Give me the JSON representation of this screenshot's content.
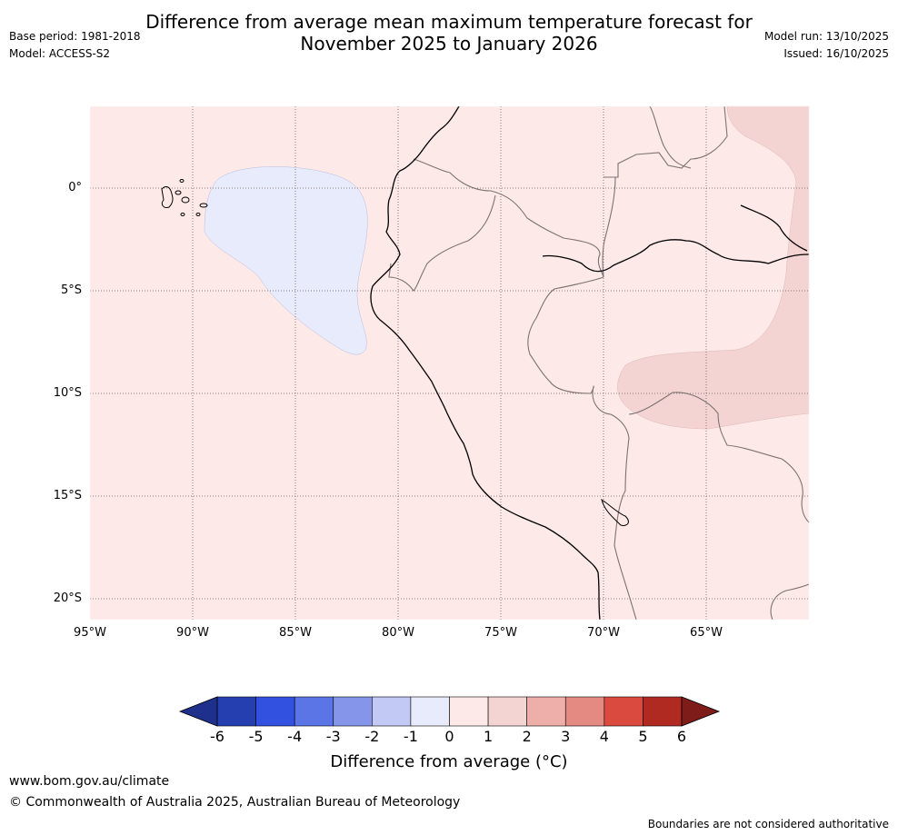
{
  "title_line1": "Difference from average mean maximum temperature forecast for",
  "title_line2": "November 2025 to January 2026",
  "meta": {
    "base_period": "Base period: 1981-2018",
    "model": "Model: ACCESS-S2",
    "model_run": "Model run: 13/10/2025",
    "issued": "Issued: 16/10/2025"
  },
  "map": {
    "latitude_labels": [
      "0°",
      "5°S",
      "10°S",
      "15°S",
      "20°S"
    ],
    "longitude_labels": [
      "95°W",
      "90°W",
      "85°W",
      "80°W",
      "75°W",
      "70°W",
      "65°W"
    ],
    "background_category": "0 to 1",
    "anomaly_regions": [
      {
        "name": "cool anomaly west of Ecuador",
        "category": "-1 to 0"
      },
      {
        "name": "warm anomaly western Brazil/Bolivia",
        "category": "1 to 2"
      }
    ]
  },
  "colorbar": {
    "ticks": [
      "-6",
      "-5",
      "-4",
      "-3",
      "-2",
      "-1",
      "0",
      "1",
      "2",
      "3",
      "4",
      "5",
      "6"
    ],
    "colors": [
      "#1f2f8c",
      "#263fb0",
      "#3251e0",
      "#5b74e6",
      "#8596ea",
      "#c2c9f4",
      "#e8ebfb",
      "#fce9e8",
      "#f4d4d3",
      "#eeaeaa",
      "#e58a82",
      "#db4a3e",
      "#b02a22",
      "#7d1c18"
    ],
    "label": "Difference from average (°C)"
  },
  "footer": {
    "url": "www.bom.gov.au/climate",
    "copyright": "© Commonwealth of Australia 2025, Australian Bureau of Meteorology",
    "disclaimer": "Boundaries are not considered authoritative"
  }
}
